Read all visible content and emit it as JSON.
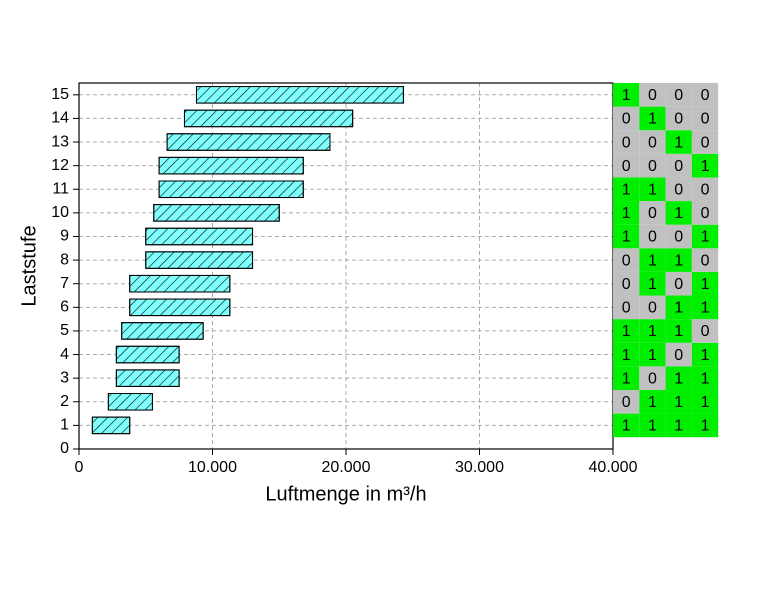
{
  "chart_data": {
    "type": "floating-bar",
    "orientation": "horizontal",
    "xlabel": "Luftmenge in m³/h",
    "ylabel": "Laststufe",
    "y": [
      1,
      2,
      3,
      4,
      5,
      6,
      7,
      8,
      9,
      10,
      11,
      12,
      13,
      14,
      15
    ],
    "low": [
      1000,
      2200,
      2800,
      2800,
      3200,
      3800,
      3800,
      5000,
      5000,
      5600,
      6000,
      6000,
      6600,
      7900,
      8800
    ],
    "high": [
      3800,
      5500,
      7500,
      7500,
      9300,
      11300,
      11300,
      13000,
      13000,
      15000,
      16800,
      16800,
      18800,
      20500,
      24300
    ],
    "color": "#80ffff",
    "hatch": true,
    "xlim": [
      0,
      40000
    ],
    "xticks": [
      0,
      {
        "value": 10000,
        "label": "10.000"
      },
      {
        "value": 20000,
        "label": "20.000"
      },
      {
        "value": 30000,
        "label": "30.000"
      },
      {
        "value": 40000,
        "label": "40.000"
      }
    ],
    "ylim": [
      0,
      15.5
    ],
    "yticks": [
      0,
      1,
      2,
      3,
      4,
      5,
      6,
      7,
      8,
      9,
      10,
      11,
      12,
      13,
      14,
      15
    ],
    "grid": true,
    "table": [
      [
        1,
        1,
        1,
        1
      ],
      [
        0,
        1,
        1,
        1
      ],
      [
        1,
        0,
        1,
        1
      ],
      [
        1,
        1,
        0,
        1
      ],
      [
        1,
        1,
        1,
        0
      ],
      [
        0,
        0,
        1,
        1
      ],
      [
        0,
        1,
        0,
        1
      ],
      [
        0,
        1,
        1,
        0
      ],
      [
        1,
        0,
        0,
        1
      ],
      [
        1,
        0,
        1,
        0
      ],
      [
        1,
        1,
        0,
        0
      ],
      [
        0,
        0,
        0,
        1
      ],
      [
        0,
        0,
        1,
        0
      ],
      [
        0,
        1,
        0,
        0
      ],
      [
        1,
        0,
        0,
        0
      ]
    ],
    "table_colors": [
      "#c0c0c0",
      "#00ee00"
    ]
  }
}
